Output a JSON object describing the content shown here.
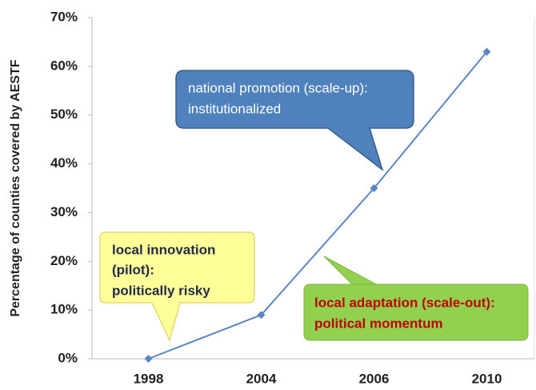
{
  "chart_data": {
    "type": "line",
    "y_label": "Percentage of counties covered by AESTF",
    "categories": [
      "1998",
      "2004",
      "2006",
      "2010"
    ],
    "values": [
      0,
      9,
      35,
      63
    ],
    "color": "#5b86c2",
    "ylim": [
      0,
      70
    ],
    "yticks": [
      {
        "value": 0,
        "label": "0%"
      },
      {
        "value": 10,
        "label": "10%"
      },
      {
        "value": 20,
        "label": "20%"
      },
      {
        "value": 30,
        "label": "30%"
      },
      {
        "value": 40,
        "label": "40%"
      },
      {
        "value": 50,
        "label": "50%"
      },
      {
        "value": 60,
        "label": "60%"
      },
      {
        "value": 70,
        "label": "70%"
      }
    ],
    "annotations": [
      {
        "lines": [
          "local innovation",
          "(pilot):",
          "politically risky"
        ]
      },
      {
        "lines": [
          "national promotion (scale-up):",
          "institutionalized"
        ]
      },
      {
        "lines": [
          "local adaptation (scale-out):",
          "political momentum"
        ]
      }
    ]
  }
}
